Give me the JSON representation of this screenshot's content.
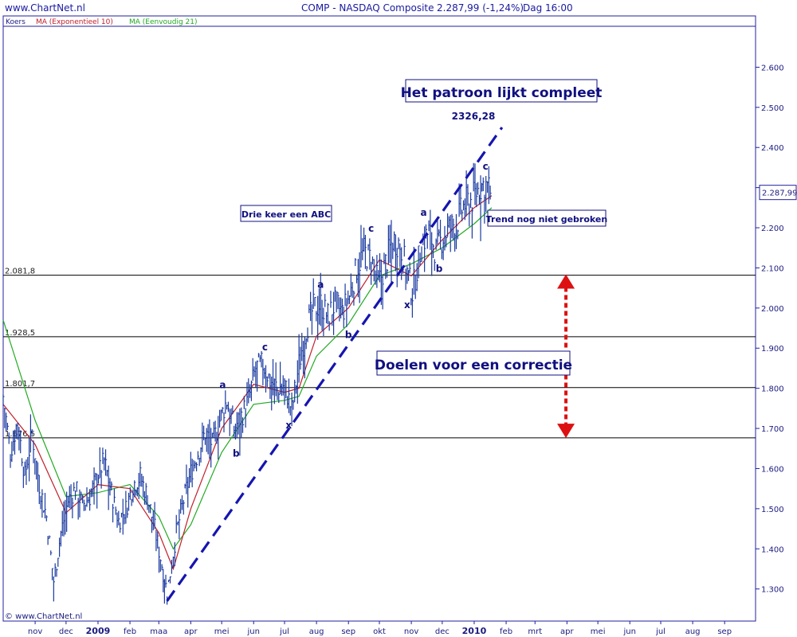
{
  "header": {
    "site": "www.ChartNet.nl",
    "symbol": "COMP - NASDAQ Composite",
    "quote": "2.287,99 (-1,24%)",
    "period": "Dag  16:00"
  },
  "copyright": "© www.ChartNet.nl",
  "colors": {
    "frame": "#2020a0",
    "price": "#1a3aa0",
    "ema": "#c0202a",
    "sma": "#22aa22",
    "trend": "#1515b0",
    "arrow": "#dd1111"
  },
  "chart_data": {
    "type": "line",
    "title": "COMP - NASDAQ Composite",
    "legend": [
      "Koers",
      "MA (Exponentieel 10)",
      "MA (Eenvoudig 21)"
    ],
    "legend_placement": "top-left",
    "y_axis": {
      "side": "right",
      "range": [
        1220,
        2700
      ],
      "ticks": [
        1300,
        1400,
        1500,
        1600,
        1700,
        1800,
        1900,
        2000,
        2100,
        2200,
        2300,
        2400,
        2500,
        2600
      ],
      "tick_labels": [
        "1.300",
        "1.400",
        "1.500",
        "1.600",
        "1.700",
        "1.800",
        "1.900",
        "2.000",
        "2.100",
        "2.200",
        "2.300",
        "2.400",
        "2.500",
        "2.600"
      ]
    },
    "x_axis": {
      "range": [
        "2008-10-01",
        "2010-10-01"
      ],
      "ticks": [
        {
          "date": "2008-11-01",
          "label": "nov",
          "bold": false
        },
        {
          "date": "2008-12-01",
          "label": "dec",
          "bold": false
        },
        {
          "date": "2009-01-01",
          "label": "2009",
          "bold": true
        },
        {
          "date": "2009-02-01",
          "label": "feb",
          "bold": false
        },
        {
          "date": "2009-03-01",
          "label": "maa",
          "bold": false
        },
        {
          "date": "2009-04-01",
          "label": "apr",
          "bold": false
        },
        {
          "date": "2009-05-01",
          "label": "mei",
          "bold": false
        },
        {
          "date": "2009-06-01",
          "label": "jun",
          "bold": false
        },
        {
          "date": "2009-07-01",
          "label": "jul",
          "bold": false
        },
        {
          "date": "2009-08-01",
          "label": "aug",
          "bold": false
        },
        {
          "date": "2009-09-01",
          "label": "sep",
          "bold": false
        },
        {
          "date": "2009-10-01",
          "label": "okt",
          "bold": false
        },
        {
          "date": "2009-11-01",
          "label": "nov",
          "bold": false
        },
        {
          "date": "2009-12-01",
          "label": "dec",
          "bold": false
        },
        {
          "date": "2010-01-01",
          "label": "2010",
          "bold": true
        },
        {
          "date": "2010-02-01",
          "label": "feb",
          "bold": false
        },
        {
          "date": "2010-03-01",
          "label": "mrt",
          "bold": false
        },
        {
          "date": "2010-04-01",
          "label": "apr",
          "bold": false
        },
        {
          "date": "2010-05-01",
          "label": "mei",
          "bold": false
        },
        {
          "date": "2010-06-01",
          "label": "jun",
          "bold": false
        },
        {
          "date": "2010-07-01",
          "label": "jul",
          "bold": false
        },
        {
          "date": "2010-08-01",
          "label": "aug",
          "bold": false
        },
        {
          "date": "2010-09-01",
          "label": "sep",
          "bold": false
        }
      ]
    },
    "grid": false,
    "last_value": {
      "value": 2287.99,
      "label": "2.287,99"
    },
    "horizontal_levels": [
      {
        "value": 2081.8,
        "label": "2.081,8"
      },
      {
        "value": 1928.5,
        "label": "1.928,5"
      },
      {
        "value": 1801.7,
        "label": "1.801,7"
      },
      {
        "value": 1676.5,
        "label": "1.676,5"
      }
    ],
    "price_series": {
      "name": "Koers",
      "x": [
        "2008-10-01",
        "2008-10-08",
        "2008-10-15",
        "2008-10-22",
        "2008-10-29",
        "2008-11-05",
        "2008-11-12",
        "2008-11-19",
        "2008-11-26",
        "2008-12-03",
        "2008-12-10",
        "2008-12-17",
        "2008-12-24",
        "2008-12-31",
        "2009-01-07",
        "2009-01-14",
        "2009-01-21",
        "2009-01-28",
        "2009-02-04",
        "2009-02-11",
        "2009-02-18",
        "2009-02-25",
        "2009-03-04",
        "2009-03-09",
        "2009-03-18",
        "2009-03-25",
        "2009-04-01",
        "2009-04-08",
        "2009-04-15",
        "2009-04-22",
        "2009-04-29",
        "2009-05-06",
        "2009-05-13",
        "2009-05-20",
        "2009-05-27",
        "2009-06-03",
        "2009-06-10",
        "2009-06-17",
        "2009-06-24",
        "2009-07-01",
        "2009-07-08",
        "2009-07-15",
        "2009-07-22",
        "2009-07-29",
        "2009-08-05",
        "2009-08-12",
        "2009-08-19",
        "2009-08-26",
        "2009-09-02",
        "2009-09-09",
        "2009-09-16",
        "2009-09-23",
        "2009-09-30",
        "2009-10-07",
        "2009-10-14",
        "2009-10-21",
        "2009-10-28",
        "2009-11-02",
        "2009-11-11",
        "2009-11-18",
        "2009-11-25",
        "2009-12-02",
        "2009-12-09",
        "2009-12-16",
        "2009-12-23",
        "2009-12-30",
        "2010-01-06",
        "2010-01-11",
        "2010-01-18"
      ],
      "close": [
        1780,
        1640,
        1720,
        1580,
        1690,
        1560,
        1480,
        1320,
        1440,
        1520,
        1550,
        1510,
        1530,
        1580,
        1620,
        1540,
        1470,
        1500,
        1560,
        1580,
        1530,
        1450,
        1360,
        1290,
        1440,
        1520,
        1590,
        1640,
        1690,
        1660,
        1720,
        1770,
        1700,
        1730,
        1770,
        1850,
        1860,
        1820,
        1800,
        1810,
        1745,
        1860,
        1950,
        2000,
        2010,
        1980,
        2010,
        1990,
        2030,
        2100,
        2140,
        2120,
        2060,
        2110,
        2170,
        2160,
        2090,
        2040,
        2160,
        2190,
        2140,
        2180,
        2200,
        2220,
        2260,
        2270,
        2300,
        2310,
        2288
      ]
    },
    "ema_series": {
      "name": "MA (Exponentieel 10)",
      "x": [
        "2008-10-01",
        "2008-11-01",
        "2008-12-01",
        "2009-01-01",
        "2009-02-01",
        "2009-03-01",
        "2009-03-15",
        "2009-04-01",
        "2009-05-01",
        "2009-06-01",
        "2009-07-01",
        "2009-07-15",
        "2009-08-01",
        "2009-09-01",
        "2009-10-01",
        "2009-11-01",
        "2009-12-01",
        "2010-01-01",
        "2010-01-18"
      ],
      "values": [
        1760,
        1660,
        1490,
        1560,
        1550,
        1440,
        1350,
        1500,
        1700,
        1810,
        1790,
        1800,
        1930,
        2000,
        2120,
        2080,
        2170,
        2250,
        2280
      ]
    },
    "sma_series": {
      "name": "MA (Eenvoudig 21)",
      "x": [
        "2008-10-01",
        "2008-11-01",
        "2008-12-01",
        "2009-01-01",
        "2009-02-01",
        "2009-03-01",
        "2009-03-15",
        "2009-04-01",
        "2009-05-01",
        "2009-06-01",
        "2009-07-01",
        "2009-07-15",
        "2009-08-01",
        "2009-09-01",
        "2009-10-01",
        "2009-11-01",
        "2009-12-01",
        "2010-01-01",
        "2010-01-18"
      ],
      "values": [
        1970,
        1720,
        1530,
        1540,
        1560,
        1480,
        1400,
        1460,
        1640,
        1760,
        1770,
        1780,
        1880,
        1960,
        2080,
        2110,
        2150,
        2210,
        2250
      ]
    },
    "trendline": {
      "from": {
        "date": "2009-03-09",
        "value": 1270
      },
      "to": {
        "date": "2010-01-28",
        "value": 2450
      }
    },
    "annotations": [
      {
        "text": "Het patroon lijkt compleet",
        "boxed": true
      },
      {
        "text": "2326,28",
        "boxed": false
      },
      {
        "text": "Drie keer een ABC",
        "boxed": true
      },
      {
        "text": "Trend nog niet gebroken",
        "boxed": true
      },
      {
        "text": "Doelen voor een correctie",
        "boxed": true
      }
    ],
    "wave_labels": [
      {
        "text": "a",
        "date": "2009-05-02",
        "value": 1800
      },
      {
        "text": "b",
        "date": "2009-05-15",
        "value": 1630
      },
      {
        "text": "c",
        "date": "2009-06-12",
        "value": 1895
      },
      {
        "text": "x",
        "date": "2009-07-05",
        "value": 1700
      },
      {
        "text": "a",
        "date": "2009-08-05",
        "value": 2050
      },
      {
        "text": "b",
        "date": "2009-09-01",
        "value": 1925
      },
      {
        "text": "c",
        "date": "2009-09-23",
        "value": 2190
      },
      {
        "text": "x",
        "date": "2009-10-28",
        "value": 2000
      },
      {
        "text": "a",
        "date": "2009-11-13",
        "value": 2230
      },
      {
        "text": "b",
        "date": "2009-11-28",
        "value": 2090
      },
      {
        "text": "c",
        "date": "2010-01-12",
        "value": 2345
      }
    ],
    "correction_arrow": {
      "date": "2010-03-31",
      "from": 2080,
      "to": 1680
    }
  }
}
